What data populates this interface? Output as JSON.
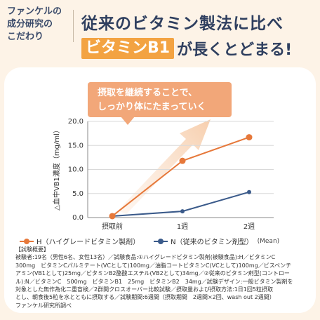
{
  "header": {
    "badge_lines": [
      "ファンケルの",
      "成分研究の",
      "こだわり"
    ],
    "headline": "従来のビタミン製法に比べ",
    "vitamin_label": "ビタミンB1",
    "headline_suffix": "が長くとどまる!"
  },
  "callout": {
    "lines": [
      "摂取を継続することで、",
      "しっかり体にたまっていく"
    ]
  },
  "colors": {
    "orange": "#e6783a",
    "blue": "#3a5a8a",
    "accent": "#f3a342"
  },
  "chart_data": {
    "type": "line",
    "categories": [
      "摂取前",
      "1週",
      "2週"
    ],
    "ylabel": "△血中VB1濃度（mg/ml）",
    "ylim": [
      0,
      20
    ],
    "yticks": [
      "0.0",
      "5.0",
      "10.0",
      "15.0",
      "20.0"
    ],
    "series": [
      {
        "name": "H（ハイグレードビタミン製剤）",
        "values": [
          0.3,
          11.8,
          16.7
        ],
        "color": "#e6783a"
      },
      {
        "name": "N（従来のビタミン剤型）",
        "values": [
          0.3,
          1.3,
          5.3
        ],
        "color": "#3a5a8a"
      }
    ],
    "legend_note": "(Mean)"
  },
  "notes": [
    "【試験概要】",
    "被験者:19名（男性6名、女性13名）／試験食品:①ハイグレードビタミン製剤(被験食品):H／ビタミンC",
    "300mg　ビタミンCパルミテート(VCとして)100mg／油脂コートビタミンC(VCとして)100mg／ビスベンチ",
    "アミン(VB1として)25mg／ビタミンB2酪酸エステル(VB2として)34mg／②従来のビタミン剤型(コントロー",
    "ル):N／ビタミンC　500mg　ビタミンB1　25mg　ビタミンB2　34mg／試験デザイン:一般ビタミン製剤を",
    "対象とした無作為化二重盲検／2群間クロスオーバー比較試験／摂取量および摂取方法:1日1回5粒摂取",
    "とし、朝食後5粒を水とともに摂取する／試験期間:6週間（摂取期間　2週間×2回、wash out 2週間）",
    "ファンケル研究所調べ"
  ]
}
